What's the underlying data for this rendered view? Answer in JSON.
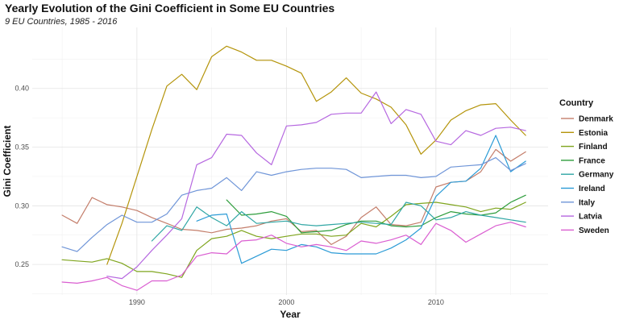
{
  "chart_data": {
    "type": "line",
    "title": "Yearly Evolution of the Gini Coefficient in Some EU Countries",
    "subtitle": "9 EU Countries, 1985 - 2016",
    "xlabel": "Year",
    "ylabel": "Gini Coefficient",
    "xlim": [
      1983,
      2017.5
    ],
    "ylim": [
      0.224,
      0.452
    ],
    "x_ticks": [
      1990,
      2000,
      2010
    ],
    "y_ticks": [
      0.25,
      0.3,
      0.35,
      0.4
    ],
    "x_tick_labels": [
      "1990",
      "2000",
      "2010"
    ],
    "y_tick_labels": [
      "0.25",
      "0.30",
      "0.35",
      "0.40"
    ],
    "legend_title": "Country",
    "grid": true,
    "series": [
      {
        "name": "Denmark",
        "color": "#C47E6B",
        "x": [
          1985,
          1986,
          1987,
          1988,
          1989,
          1990,
          1991,
          1992,
          1993,
          1994,
          1995,
          1996,
          1997,
          1998,
          1999,
          2000,
          2001,
          2002,
          2003,
          2004,
          2005,
          2006,
          2007,
          2008,
          2009,
          2010,
          2011,
          2012,
          2013,
          2014,
          2015,
          2016
        ],
        "y": [
          0.292,
          0.285,
          0.307,
          0.301,
          0.299,
          0.296,
          0.29,
          0.285,
          0.28,
          0.279,
          0.277,
          0.28,
          0.281,
          0.283,
          0.287,
          0.289,
          0.278,
          0.279,
          0.267,
          0.274,
          0.29,
          0.299,
          0.284,
          0.283,
          0.286,
          0.316,
          0.32,
          0.321,
          0.329,
          0.348,
          0.338,
          0.346
        ]
      },
      {
        "name": "Estonia",
        "color": "#B4940A",
        "x": [
          1988,
          1989,
          1990,
          1991,
          1992,
          1993,
          1994,
          1995,
          1996,
          1997,
          1998,
          1999,
          2000,
          2001,
          2002,
          2003,
          2004,
          2005,
          2006,
          2007,
          2008,
          2009,
          2010,
          2011,
          2012,
          2013,
          2014,
          2015,
          2016
        ],
        "y": [
          0.25,
          0.285,
          0.325,
          0.365,
          0.402,
          0.412,
          0.399,
          0.427,
          0.436,
          0.431,
          0.424,
          0.424,
          0.419,
          0.413,
          0.389,
          0.397,
          0.409,
          0.396,
          0.391,
          0.384,
          0.369,
          0.344,
          0.356,
          0.373,
          0.381,
          0.386,
          0.387,
          0.373,
          0.36
        ]
      },
      {
        "name": "Finland",
        "color": "#7FA51E",
        "x": [
          1985,
          1986,
          1987,
          1988,
          1989,
          1990,
          1991,
          1992,
          1993,
          1994,
          1995,
          1996,
          1997,
          1998,
          1999,
          2000,
          2001,
          2002,
          2003,
          2004,
          2005,
          2006,
          2007,
          2008,
          2009,
          2010,
          2011,
          2012,
          2013,
          2014,
          2015,
          2016
        ],
        "y": [
          0.254,
          0.253,
          0.252,
          0.255,
          0.251,
          0.244,
          0.244,
          0.242,
          0.239,
          0.262,
          0.272,
          0.274,
          0.279,
          0.274,
          0.272,
          0.274,
          0.276,
          0.276,
          0.274,
          0.275,
          0.285,
          0.282,
          0.291,
          0.301,
          0.302,
          0.303,
          0.301,
          0.299,
          0.295,
          0.298,
          0.297,
          0.303
        ]
      },
      {
        "name": "France",
        "color": "#2E9D3C",
        "x": [
          1996,
          1997,
          1998,
          1999,
          2000,
          2001,
          2002,
          2003,
          2004,
          2005,
          2006,
          2007,
          2008,
          2009,
          2010,
          2011,
          2012,
          2013,
          2014,
          2015,
          2016
        ],
        "y": [
          0.305,
          0.292,
          0.293,
          0.295,
          0.291,
          0.277,
          0.278,
          0.279,
          0.284,
          0.287,
          0.287,
          0.283,
          0.282,
          0.283,
          0.29,
          0.295,
          0.293,
          0.292,
          0.294,
          0.303,
          0.309
        ]
      },
      {
        "name": "Germany",
        "color": "#2FA6A4",
        "x": [
          1991,
          1992,
          1993,
          1994,
          1995,
          1996,
          1997,
          1998,
          1999,
          2000,
          2001,
          2002,
          2003,
          2004,
          2005,
          2006,
          2007,
          2008,
          2009,
          2010,
          2011,
          2012,
          2013,
          2014,
          2015,
          2016
        ],
        "y": [
          0.27,
          0.283,
          0.279,
          0.299,
          0.29,
          0.283,
          0.295,
          0.285,
          0.286,
          0.287,
          0.284,
          0.283,
          0.284,
          0.285,
          0.286,
          0.285,
          0.284,
          0.303,
          0.3,
          0.288,
          0.29,
          0.295,
          0.292,
          0.29,
          0.288,
          0.286
        ]
      },
      {
        "name": "Ireland",
        "color": "#2B9BD6",
        "x": [
          1994,
          1995,
          1996,
          1997,
          1998,
          1999,
          2000,
          2001,
          2002,
          2003,
          2004,
          2005,
          2006,
          2007,
          2008,
          2009,
          2010,
          2011,
          2012,
          2013,
          2014,
          2015,
          2016
        ],
        "y": [
          0.287,
          0.292,
          0.293,
          0.251,
          0.257,
          0.263,
          0.262,
          0.267,
          0.265,
          0.26,
          0.259,
          0.259,
          0.259,
          0.264,
          0.271,
          0.281,
          0.308,
          0.32,
          0.321,
          0.332,
          0.36,
          0.329,
          0.338
        ]
      },
      {
        "name": "Italy",
        "color": "#6F95D8",
        "x": [
          1985,
          1986,
          1987,
          1988,
          1989,
          1990,
          1991,
          1992,
          1993,
          1994,
          1995,
          1996,
          1997,
          1998,
          1999,
          2000,
          2001,
          2002,
          2003,
          2004,
          2005,
          2006,
          2007,
          2008,
          2009,
          2010,
          2011,
          2012,
          2013,
          2014,
          2015,
          2016
        ],
        "y": [
          0.265,
          0.261,
          0.273,
          0.284,
          0.292,
          0.286,
          0.286,
          0.293,
          0.309,
          0.313,
          0.315,
          0.324,
          0.313,
          0.329,
          0.326,
          0.329,
          0.331,
          0.332,
          0.332,
          0.331,
          0.324,
          0.325,
          0.326,
          0.326,
          0.324,
          0.325,
          0.333,
          0.334,
          0.335,
          0.341,
          0.33,
          0.336
        ]
      },
      {
        "name": "Latvia",
        "color": "#B668E0",
        "x": [
          1988,
          1989,
          1990,
          1991,
          1992,
          1993,
          1994,
          1995,
          1996,
          1997,
          1998,
          1999,
          2000,
          2001,
          2002,
          2003,
          2004,
          2005,
          2006,
          2007,
          2008,
          2009,
          2010,
          2011,
          2012,
          2013,
          2014,
          2015,
          2016
        ],
        "y": [
          0.24,
          0.238,
          0.248,
          0.262,
          0.275,
          0.289,
          0.335,
          0.341,
          0.361,
          0.36,
          0.345,
          0.335,
          0.368,
          0.369,
          0.371,
          0.378,
          0.379,
          0.379,
          0.397,
          0.37,
          0.382,
          0.378,
          0.355,
          0.352,
          0.364,
          0.36,
          0.366,
          0.367,
          0.364
        ]
      },
      {
        "name": "Sweden",
        "color": "#DA5ED1",
        "x": [
          1985,
          1986,
          1987,
          1988,
          1989,
          1990,
          1991,
          1992,
          1993,
          1994,
          1995,
          1996,
          1997,
          1998,
          1999,
          2000,
          2001,
          2002,
          2003,
          2004,
          2005,
          2006,
          2007,
          2008,
          2009,
          2010,
          2011,
          2012,
          2013,
          2014,
          2015,
          2016
        ],
        "y": [
          0.235,
          0.234,
          0.236,
          0.239,
          0.232,
          0.228,
          0.236,
          0.236,
          0.241,
          0.257,
          0.26,
          0.259,
          0.27,
          0.271,
          0.275,
          0.268,
          0.265,
          0.267,
          0.265,
          0.262,
          0.27,
          0.268,
          0.271,
          0.275,
          0.267,
          0.285,
          0.279,
          0.269,
          0.276,
          0.283,
          0.286,
          0.282
        ]
      }
    ]
  }
}
